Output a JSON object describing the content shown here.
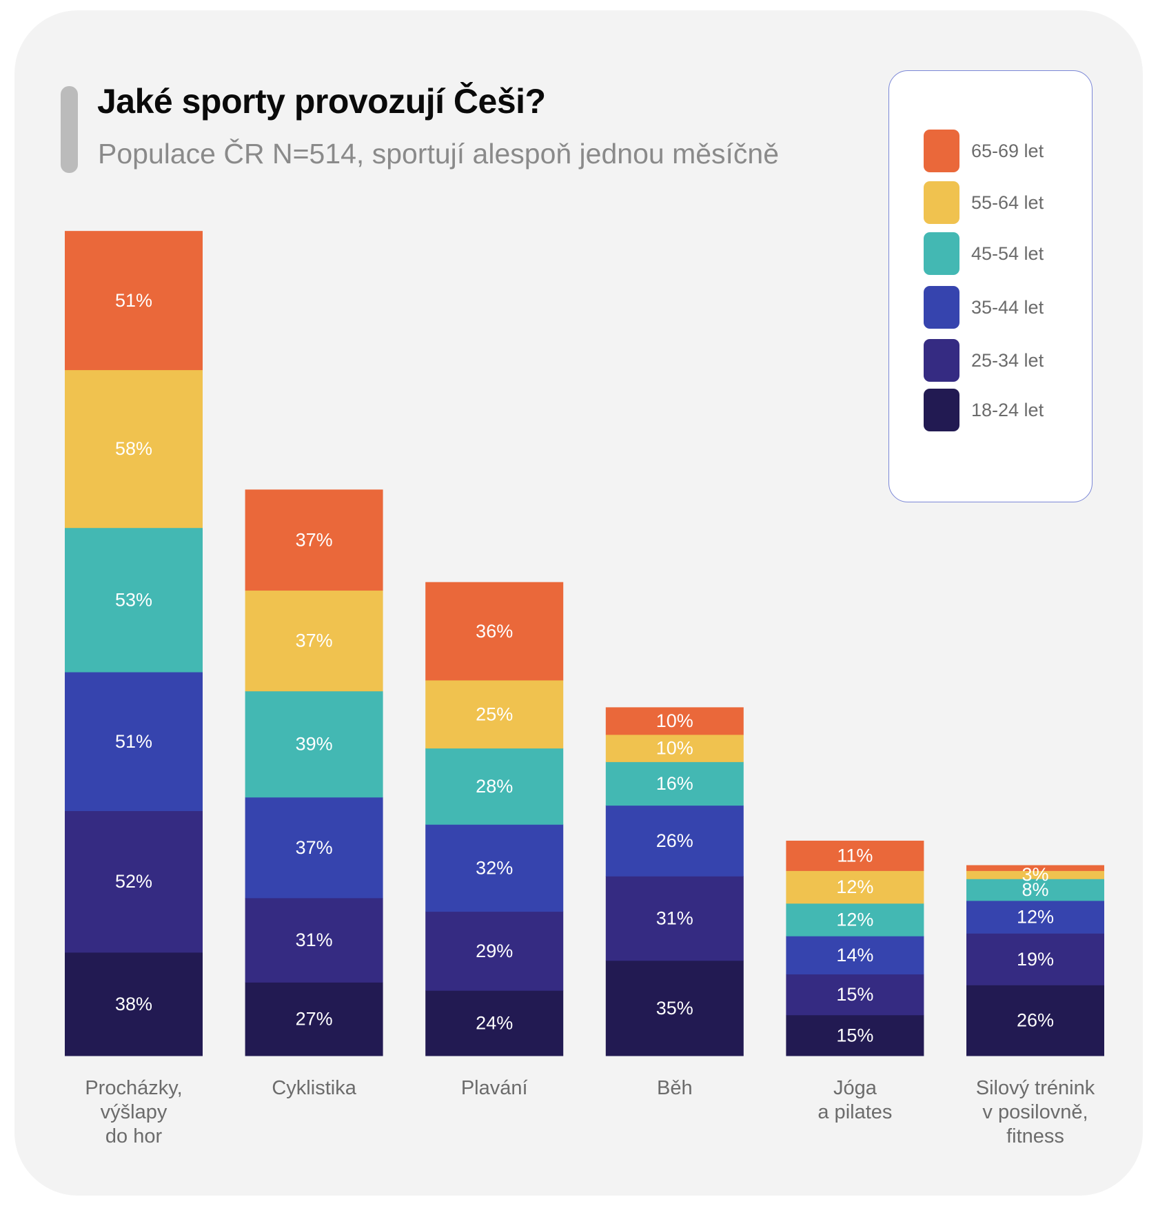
{
  "header": {
    "title": "Jaké sporty provozují Češi?",
    "subtitle": "Populace ČR N=514, sportují alespoň jednou měsíčně"
  },
  "chart_data": {
    "type": "bar",
    "stacked": true,
    "title": "Jaké sporty provozují Češi?",
    "subtitle": "Populace ČR N=514, sportují alespoň jednou měsíčně",
    "xlabel": "",
    "ylabel": "",
    "grid": false,
    "legend_position": "top-right",
    "categories": [
      "Procházky,\nvýšlapy\ndo hor",
      "Cyklistika",
      "Plavání",
      "Běh",
      "Jóga\na pilates",
      "Silový trénink\nv posilovně,\nfitness"
    ],
    "series": [
      {
        "name": "18-24 let",
        "color": "#221a52",
        "values": [
          38,
          27,
          24,
          35,
          15,
          26
        ],
        "labels": [
          "38%",
          "27%",
          "24%",
          "35%",
          "15%",
          "26%"
        ]
      },
      {
        "name": "25-34 let",
        "color": "#352b82",
        "values": [
          52,
          31,
          29,
          31,
          15,
          19
        ],
        "labels": [
          "52%",
          "31%",
          "29%",
          "31%",
          "15%",
          "19%"
        ]
      },
      {
        "name": "35-44 let",
        "color": "#3644ae",
        "values": [
          51,
          37,
          32,
          26,
          14,
          12
        ],
        "labels": [
          "51%",
          "37%",
          "32%",
          "26%",
          "14%",
          "12%"
        ]
      },
      {
        "name": "45-54 let",
        "color": "#43b8b3",
        "values": [
          53,
          39,
          28,
          16,
          12,
          8
        ],
        "labels": [
          "53%",
          "39%",
          "28%",
          "16%",
          "12%",
          "8%"
        ]
      },
      {
        "name": "55-64 let",
        "color": "#f0c24f",
        "values": [
          58,
          37,
          25,
          10,
          12,
          3
        ],
        "labels": [
          "58%",
          "37%",
          "25%",
          "10%",
          "12%",
          "3%"
        ]
      },
      {
        "name": "65-69 let",
        "color": "#ea683a",
        "values": [
          51,
          37,
          36,
          10,
          11,
          2
        ],
        "labels": [
          "51%",
          "37%",
          "36%",
          "10%",
          "11%",
          ""
        ]
      }
    ]
  },
  "legend": {
    "items": [
      {
        "label": "65-69 let",
        "color": "#ea683a"
      },
      {
        "label": "55-64 let",
        "color": "#f0c24f"
      },
      {
        "label": "45-54 let",
        "color": "#43b8b3"
      },
      {
        "label": "35-44 let",
        "color": "#3644ae"
      },
      {
        "label": "25-34 let",
        "color": "#352b82"
      },
      {
        "label": "18-24 let",
        "color": "#221a52"
      }
    ]
  }
}
